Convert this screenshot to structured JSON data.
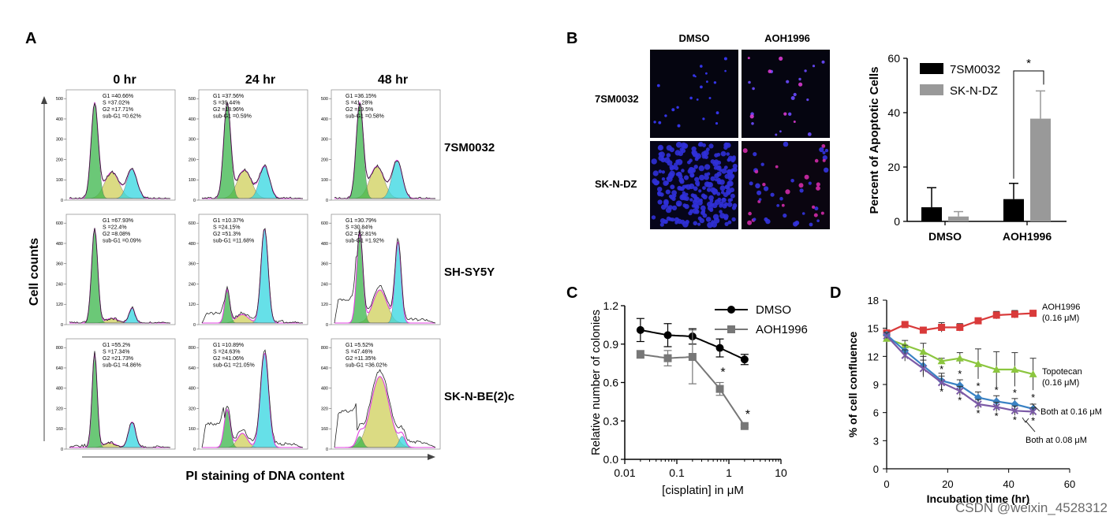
{
  "figure": {
    "panel_labels": [
      "A",
      "B",
      "C",
      "D"
    ],
    "watermark": "CSDN @weixin_4528312"
  },
  "panel_a": {
    "time_labels": [
      "0 hr",
      "24 hr",
      "48 hr"
    ],
    "cell_lines": [
      "7SM0032",
      "SH-SY5Y",
      "SK-N-BE(2)c"
    ],
    "ylabel": "Cell counts",
    "xlabel": "PI staining of DNA content",
    "row_ymax": [
      500,
      600,
      800
    ],
    "stats": [
      [
        [
          "G1 =40.66%",
          "S =37.02%",
          "G2 =17.71%",
          "sub-G1 =0.62%"
        ],
        [
          "G1 =37.56%",
          "S =39.44%",
          "G2 =18.96%",
          "sub-G1 =0.59%"
        ],
        [
          "G1 =36.15%",
          "S =41.28%",
          "G2 =19.5%",
          "sub-G1 =0.58%"
        ]
      ],
      [
        [
          "G1 =67.93%",
          "S =22.4%",
          "G2 =8.08%",
          "sub-G1 =0.09%"
        ],
        [
          "G1 =10.37%",
          "S =24.15%",
          "G2 =51.3%",
          "sub-G1 =11.68%"
        ],
        [
          "G1 =30.79%",
          "S =30.84%",
          "G2 =22.81%",
          "sub-G1 =1.92%"
        ]
      ],
      [
        [
          "G1 =55.2%",
          "S =17.34%",
          "G2 =21.73%",
          "sub-G1 =4.86%"
        ],
        [
          "G1 =10.89%",
          "S =24.63%",
          "G2 =41.06%",
          "sub-G1 =21.05%"
        ],
        [
          "G1 =5.52%",
          "S =47.46%",
          "G2 =11.35%",
          "sub-G1 =36.02%"
        ]
      ]
    ]
  },
  "panel_b": {
    "image_cols": [
      "DMSO",
      "AOH1996"
    ],
    "image_rows": [
      "7SM0032",
      "SK-N-DZ"
    ]
  },
  "chart_data": [
    {
      "id": "B",
      "type": "bar",
      "categories": [
        "DMSO",
        "AOH1996"
      ],
      "series": [
        {
          "name": "7SM0032",
          "color": "#000000",
          "values": [
            5.2,
            8.2
          ],
          "errors": [
            7.2,
            5.8
          ]
        },
        {
          "name": "SK-N-DZ",
          "color": "#999999",
          "values": [
            1.8,
            37.8
          ],
          "errors": [
            1.8,
            10.2
          ]
        }
      ],
      "title": "",
      "xlabel": "",
      "ylabel": "Percent of Apoptotic Cells",
      "ylim": [
        0,
        60
      ],
      "yticks": [
        0,
        20,
        40,
        60
      ],
      "significance": "*",
      "legend": "top-left"
    },
    {
      "id": "C",
      "type": "line",
      "xscale": "log",
      "x": [
        0.02,
        0.067,
        0.2,
        0.67,
        2
      ],
      "xticks": [
        0.01,
        0.1,
        1,
        10
      ],
      "xticklabels": [
        "0.01",
        "0.1",
        "1",
        "10"
      ],
      "xlim": [
        0.01,
        10
      ],
      "ylim": [
        0,
        1.2
      ],
      "yticks": [
        0.0,
        0.3,
        0.6,
        0.9,
        1.2
      ],
      "yticklabels": [
        "0.0",
        "0.3",
        "0.6",
        "0.9",
        "1.2"
      ],
      "xlabel": "[cisplatin] in μM",
      "ylabel": "Relative number of colonies",
      "series": [
        {
          "name": "DMSO",
          "color": "#000000",
          "marker": "circle",
          "values": [
            1.01,
            0.97,
            0.96,
            0.87,
            0.78
          ],
          "errors": [
            0.09,
            0.09,
            0.06,
            0.07,
            0.04
          ]
        },
        {
          "name": "AOH1996",
          "color": "#777777",
          "marker": "square",
          "values": [
            0.82,
            0.79,
            0.8,
            0.55,
            0.26
          ],
          "errors": [
            0.03,
            0.06,
            0.21,
            0.05,
            0.01
          ]
        }
      ],
      "significance": [
        "",
        "",
        "",
        "*",
        "*"
      ],
      "legend": "top-right"
    },
    {
      "id": "D",
      "type": "line",
      "x": [
        0,
        6,
        12,
        18,
        24,
        30,
        36,
        42,
        48
      ],
      "xticks": [
        0,
        20,
        40,
        60
      ],
      "xlim": [
        0,
        60
      ],
      "ylim": [
        0,
        18
      ],
      "yticks": [
        0,
        3,
        6,
        9,
        12,
        15,
        18
      ],
      "xlabel": "Incubation time (hr)",
      "ylabel": "% of cell confluence",
      "series": [
        {
          "name": "AOH1996",
          "label_line2": "(0.16 μM)",
          "color": "#d93a3a",
          "marker": "square",
          "values": [
            14.5,
            15.4,
            14.8,
            15.1,
            15.1,
            15.8,
            16.4,
            16.5,
            16.6
          ],
          "errors": [
            0.3,
            0.3,
            0.2,
            0.5,
            0.4,
            0.2,
            0.4,
            0.4,
            0.2
          ]
        },
        {
          "name": "Topotecan",
          "label_line2": "(0.16 μM)",
          "color": "#8cc63f",
          "marker": "triangle",
          "values": [
            13.9,
            13.2,
            12.5,
            11.5,
            11.8,
            11.2,
            10.6,
            10.6,
            10.1
          ],
          "errors": [
            0.4,
            0.5,
            0.9,
            0.3,
            0.6,
            1.6,
            1.9,
            1.8,
            1.7
          ]
        },
        {
          "name": "Both at 0.16 μM",
          "color": "#3a82c4",
          "marker": "diamond",
          "values": [
            14.3,
            12.6,
            11.0,
            9.4,
            8.9,
            7.6,
            7.2,
            6.9,
            6.4
          ],
          "errors": [
            0.3,
            0.6,
            1.0,
            0.8,
            0.6,
            0.6,
            0.6,
            0.6,
            0.5
          ]
        },
        {
          "name": "Both at 0.08 μM",
          "color": "#7b5aa6",
          "marker": "x",
          "values": [
            14.2,
            12.1,
            10.7,
            9.2,
            8.3,
            6.9,
            6.6,
            6.2,
            6.1
          ],
          "errors": [
            0.3,
            0.6,
            0.9,
            0.7,
            0.5,
            0.5,
            0.5,
            0.5,
            0.4
          ]
        }
      ],
      "significance": "*"
    }
  ]
}
